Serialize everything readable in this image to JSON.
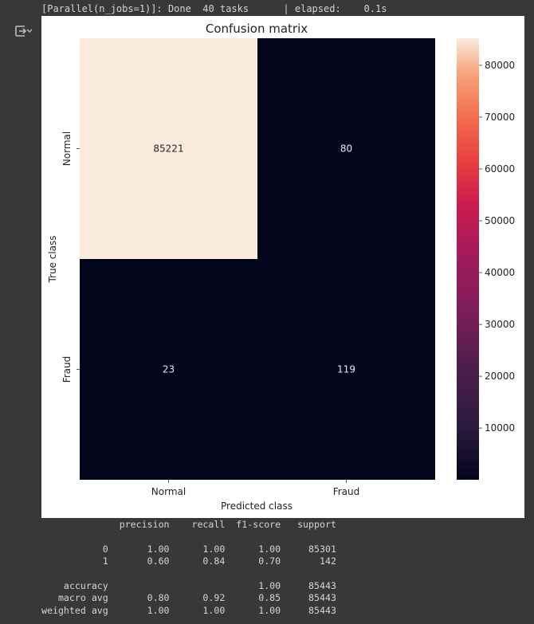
{
  "log_line": "[Parallel(n_jobs=1)]: Done  40 tasks      | elapsed:    0.1s",
  "output_icon": "output-toggle-icon",
  "chart_data": {
    "type": "heatmap",
    "title": "Confusion matrix",
    "xlabel": "Predicted class",
    "ylabel": "True class",
    "x_categories": [
      "Normal",
      "Fraud"
    ],
    "y_categories": [
      "Normal",
      "Fraud"
    ],
    "values": [
      [
        85221,
        80
      ],
      [
        23,
        119
      ]
    ],
    "cell_labels": [
      [
        "85221",
        "80"
      ],
      [
        "23",
        "119"
      ]
    ],
    "colorbar": {
      "range": [
        23,
        85221
      ],
      "ticks": [
        10000,
        20000,
        30000,
        40000,
        50000,
        60000,
        70000,
        80000
      ],
      "tick_labels": [
        "10000",
        "20000",
        "30000",
        "40000",
        "50000",
        "60000",
        "70000",
        "80000"
      ]
    },
    "colormap": "rocket"
  },
  "report": {
    "header": "              precision    recall  f1-score   support",
    "rows": [
      "",
      "           0       1.00      1.00      1.00     85301",
      "           1       0.60      0.84      0.70       142",
      "",
      "    accuracy                           1.00     85443",
      "   macro avg       0.80      0.92      0.85     85443",
      "weighted avg       1.00      1.00      1.00     85443"
    ]
  }
}
